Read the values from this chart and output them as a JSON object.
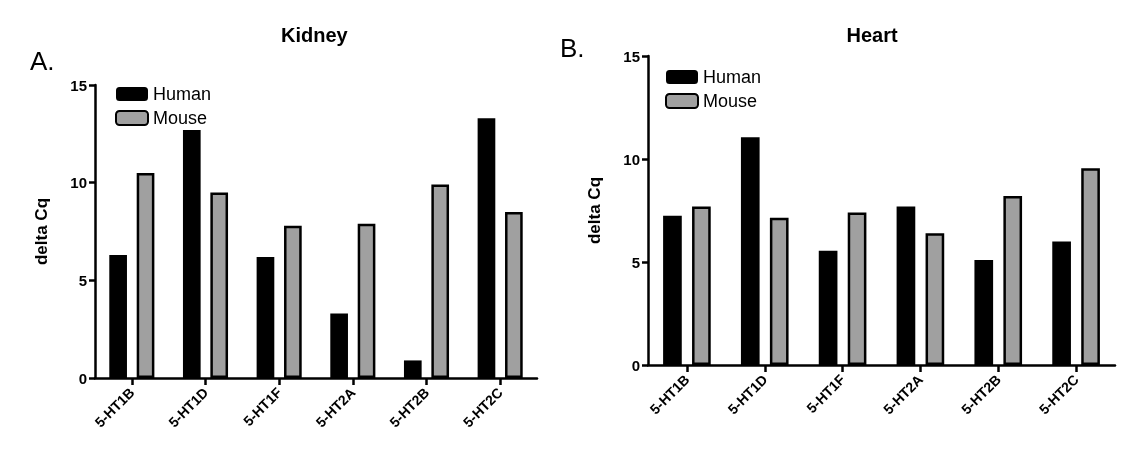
{
  "chart_data": [
    {
      "type": "bar",
      "title": "Kidney",
      "ylabel": "delta Cq",
      "annotations": [
        "A."
      ],
      "categories": [
        "5-HT1B",
        "5-HT1D",
        "5-HT1F",
        "5-HT2A",
        "5-HT2B",
        "5-HT2C"
      ],
      "series": [
        {
          "name": "Human",
          "color": "#000000",
          "values": [
            6.3,
            12.7,
            6.2,
            3.3,
            0.9,
            13.3
          ]
        },
        {
          "name": "Mouse",
          "color": "#a0a0a0",
          "values": [
            10.5,
            9.5,
            7.8,
            7.9,
            9.9,
            8.5
          ]
        }
      ],
      "ylim": [
        0,
        15
      ],
      "yticks": [
        0,
        5,
        10,
        15
      ],
      "grid": false,
      "legend": "top left"
    },
    {
      "type": "bar",
      "title": "Heart",
      "ylabel": "delta Cq",
      "annotations": [
        "B."
      ],
      "categories": [
        "5-HT1B",
        "5-HT1D",
        "5-HT1F",
        "5-HT2A",
        "5-HT2B",
        "5-HT2C"
      ],
      "series": [
        {
          "name": "Human",
          "color": "#000000",
          "values": [
            7.25,
            11.05,
            5.55,
            7.7,
            5.1,
            6.0
          ]
        },
        {
          "name": "Mouse",
          "color": "#a0a0a0",
          "values": [
            7.7,
            7.15,
            7.4,
            6.4,
            8.2,
            9.55
          ]
        }
      ],
      "ylim": [
        0,
        15
      ],
      "yticks": [
        0,
        5,
        10,
        15
      ],
      "grid": false,
      "legend": "top left"
    }
  ]
}
